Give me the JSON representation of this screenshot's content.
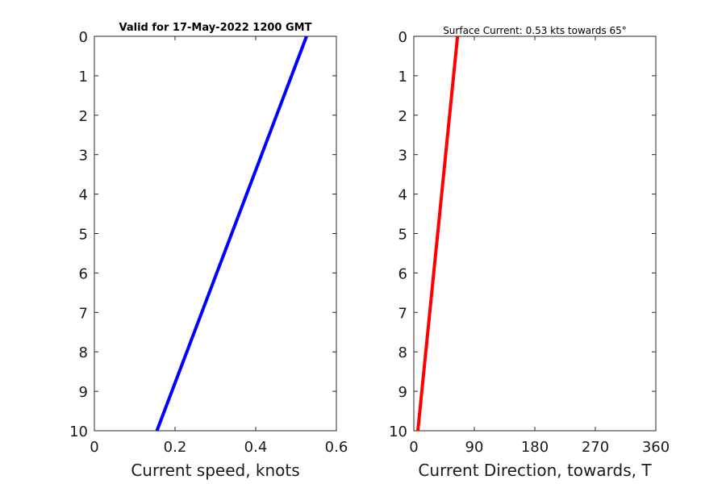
{
  "chart_data": [
    {
      "type": "line",
      "title": "Valid for 17-May-2022 1200 GMT",
      "xlabel": "Current speed, knots",
      "ylabel": "",
      "xlim": [
        0,
        0.6
      ],
      "ylim": [
        0,
        10
      ],
      "y_reversed": true,
      "xticks": [
        "0",
        "0.2",
        "0.4",
        "0.6"
      ],
      "yticks": [
        "0",
        "1",
        "2",
        "3",
        "4",
        "5",
        "6",
        "7",
        "8",
        "9",
        "10"
      ],
      "grid": false,
      "series": [
        {
          "color": "#0000ff",
          "points": [
            [
              0.526,
              0
            ],
            [
              0.155,
              10
            ]
          ]
        }
      ]
    },
    {
      "type": "line",
      "title": "Surface Current: 0.53 kts towards 65°",
      "xlabel": "Current Direction, towards, T",
      "ylabel": "",
      "xlim": [
        0,
        360
      ],
      "ylim": [
        0,
        10
      ],
      "y_reversed": true,
      "xticks": [
        "0",
        "90",
        "180",
        "270",
        "360"
      ],
      "yticks": [
        "0",
        "1",
        "2",
        "3",
        "4",
        "5",
        "6",
        "7",
        "8",
        "9",
        "10"
      ],
      "grid": false,
      "series": [
        {
          "color": "#ff0000",
          "points": [
            [
              65,
              0
            ],
            [
              6,
              10
            ]
          ]
        }
      ]
    }
  ]
}
